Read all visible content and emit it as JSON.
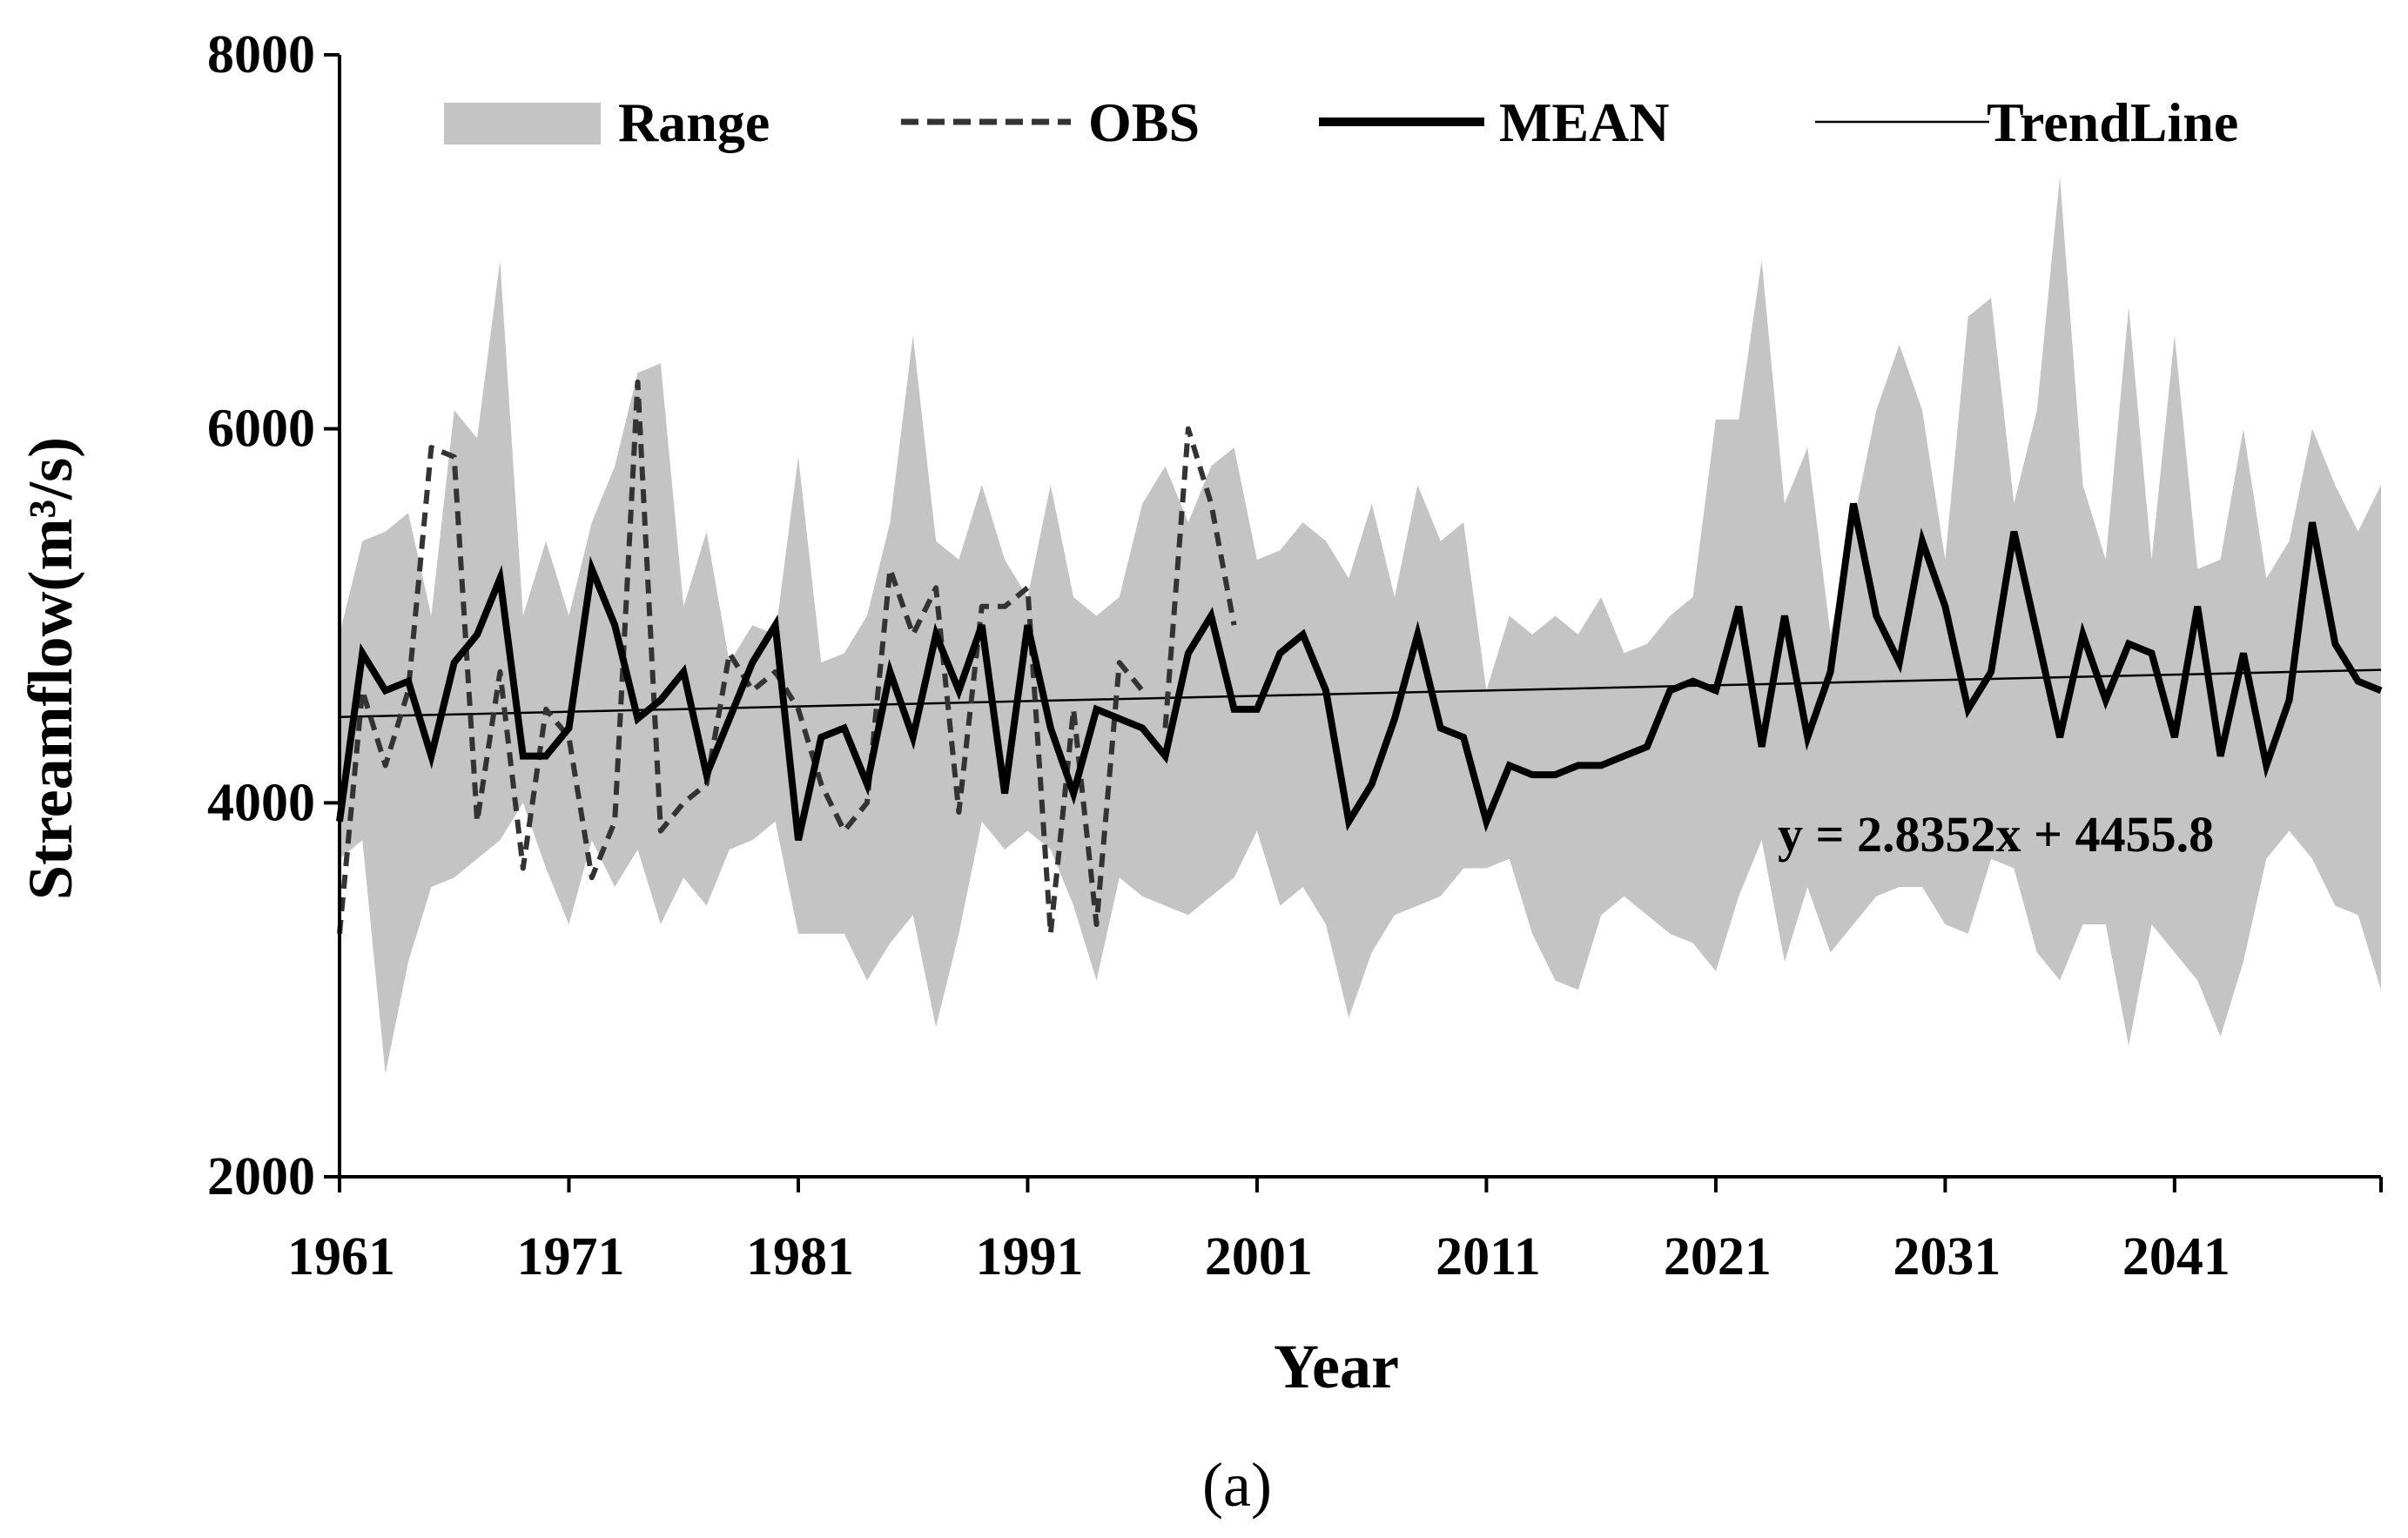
{
  "chart_data": {
    "type": "line",
    "title": "",
    "xlabel": "Year",
    "ylabel": "Streamflow(m³/s)",
    "panel_label": "(a)",
    "x_range": [
      1961,
      2050
    ],
    "ylim": [
      2000,
      8000
    ],
    "x_ticks": [
      1961,
      1971,
      1981,
      1991,
      2001,
      2011,
      2021,
      2031,
      2041
    ],
    "y_ticks": [
      2000,
      4000,
      6000,
      8000
    ],
    "legend": {
      "placement": "top",
      "entries": [
        {
          "key": "range",
          "label": "Range",
          "style": "shaded"
        },
        {
          "key": "obs",
          "label": "OBS",
          "style": "dashed"
        },
        {
          "key": "mean",
          "label": "MEAN",
          "style": "thick"
        },
        {
          "key": "trend",
          "label": "TrendLine",
          "style": "thin"
        }
      ]
    },
    "trendline": {
      "slope": 2.8352,
      "intercept": 4455.8,
      "equation": "y = 2.8352x + 4455.8"
    },
    "series": [
      {
        "name": "Range",
        "x_start": 1961,
        "upper": [
          4900,
          5400,
          5450,
          5550,
          5000,
          6100,
          5950,
          6900,
          5000,
          5400,
          5000,
          5500,
          5800,
          6300,
          6350,
          5050,
          5450,
          4750,
          4950,
          4900,
          5850,
          4750,
          4800,
          5000,
          5500,
          6500,
          5400,
          5300,
          5700,
          5300,
          5100,
          5700,
          5100,
          5000,
          5100,
          5600,
          5800,
          5500,
          5800,
          5900,
          5300,
          5350,
          5500,
          5400,
          5200,
          5600,
          5100,
          5700,
          5400,
          5500,
          4600,
          5000,
          4900,
          5000,
          4900,
          5100,
          4800,
          4850,
          5000,
          5100,
          6050,
          6050,
          6900,
          5600,
          5900,
          4900,
          5500,
          6100,
          6450,
          6100,
          5300,
          6600,
          6700,
          5600,
          6100,
          7350,
          5700,
          5300,
          6650,
          5300,
          6500,
          5250,
          5300,
          6000,
          5200,
          5400,
          6000,
          5700,
          5450,
          5700
        ],
        "lower": [
          3700,
          3800,
          2550,
          3150,
          3550,
          3600,
          3700,
          3800,
          4000,
          3650,
          3350,
          3800,
          3550,
          3750,
          3350,
          3600,
          3450,
          3750,
          3800,
          3900,
          3300,
          3300,
          3300,
          3050,
          3250,
          3400,
          2800,
          3300,
          3900,
          3750,
          3850,
          3750,
          3450,
          3050,
          3600,
          3500,
          3450,
          3400,
          3500,
          3600,
          3850,
          3450,
          3550,
          3350,
          2850,
          3200,
          3400,
          3450,
          3500,
          3650,
          3650,
          3700,
          3300,
          3050,
          3000,
          3400,
          3500,
          3400,
          3300,
          3250,
          3100,
          3500,
          3800,
          3150,
          3550,
          3200,
          3350,
          3500,
          3550,
          3550,
          3350,
          3300,
          3700,
          3650,
          3200,
          3050,
          3350,
          3350,
          2700,
          3350,
          3200,
          3050,
          2750,
          3150,
          3700,
          3850,
          3700,
          3450,
          3400,
          3000
        ]
      },
      {
        "name": "OBS",
        "x_start": 1961,
        "values": [
          3300,
          4600,
          4200,
          4600,
          5900,
          5850,
          3900,
          4700,
          3650,
          4500,
          4350,
          3600,
          3900,
          6250,
          3850,
          4000,
          4100,
          4800,
          4600,
          4700,
          4500,
          4100,
          3850,
          4000,
          5250,
          4900,
          5150,
          3950,
          5050,
          5050,
          5150,
          3300,
          4500,
          3350,
          4750,
          4600
        ]
      },
      {
        "name": "OBS",
        "x_start": 1997,
        "values": [
          4400,
          6000,
          5600,
          4950
        ]
      },
      {
        "name": "MEAN",
        "x_start": 1961,
        "values": [
          3900,
          4800,
          4600,
          4650,
          4250,
          4750,
          4900,
          5200,
          4250,
          4250,
          4400,
          5250,
          4950,
          4450,
          4550,
          4700,
          4150,
          4450,
          4750,
          4950,
          3800,
          4350,
          4400,
          4100,
          4700,
          4350,
          4900,
          4600,
          4950,
          4050,
          4950,
          4400,
          4050,
          4500,
          4450,
          4400,
          4250,
          4800,
          5000,
          4500,
          4500,
          4800,
          4900,
          4600,
          3900,
          4100,
          4450,
          4900,
          4400,
          4350,
          3900,
          4200,
          4150,
          4150,
          4200,
          4200,
          4250,
          4300,
          4600,
          4650,
          4600,
          5050,
          4300,
          5000,
          4350,
          4700,
          5600,
          5000,
          4750,
          5400,
          5050,
          4500,
          4700,
          5450,
          4900,
          4350,
          4900,
          4550,
          4850,
          4800,
          4350,
          5050,
          4250,
          4800,
          4200,
          4550,
          5500,
          4850,
          4650,
          4600
        ]
      }
    ]
  }
}
